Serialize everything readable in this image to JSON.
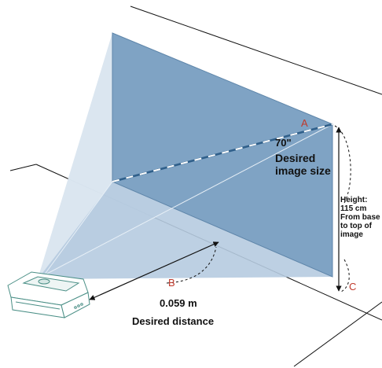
{
  "labels": {
    "screen_size": "70\"",
    "desired_image_size_line1": "Desired",
    "desired_image_size_line2": "image size",
    "height_line1": "Height:",
    "height_line2": "115 cm",
    "height_line3": "From base",
    "height_line4": "to top of",
    "height_line5": "image",
    "distance_value": "0.059 m",
    "distance_caption": "Desired distance"
  },
  "markers": {
    "a": "A",
    "b": "B",
    "c": "C"
  },
  "colors": {
    "screen_fill": "#7fa3c4",
    "beam_light": "#c9d8e7",
    "beam_mid": "#a9c1d9",
    "outline": "#111111",
    "marker": "#c0392b",
    "diagonal_dash": "#ffffff",
    "diagonal_line": "#2f5f8a"
  },
  "icons": {
    "projector": "ultra-short-throw-projector-icon"
  }
}
